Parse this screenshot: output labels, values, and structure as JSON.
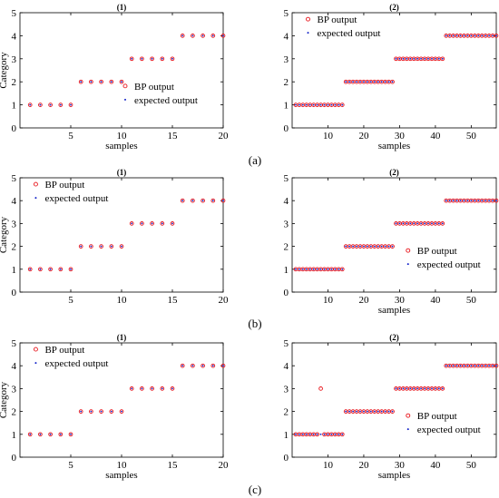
{
  "figure": {
    "rows": [
      {
        "label": "(a)"
      },
      {
        "label": "(b)"
      },
      {
        "label": "(c)"
      }
    ]
  },
  "colors": {
    "bp_output": "#e8141b",
    "expected_output": "#1020c8",
    "axis": "#000000"
  },
  "chart_data": [
    {
      "type": "scatter",
      "title": "(1)",
      "xlabel": "samples",
      "ylabel": "Category",
      "xlim": [
        0,
        20
      ],
      "ylim": [
        0,
        5
      ],
      "xticks": [
        5,
        10,
        15,
        20
      ],
      "yticks": [
        0,
        1,
        2,
        3,
        4,
        5
      ],
      "legend_position": "center-right",
      "series": [
        {
          "name": "BP output",
          "marker": "circle-open",
          "x": [
            1,
            2,
            3,
            4,
            5,
            6,
            7,
            8,
            9,
            10,
            11,
            12,
            13,
            14,
            15,
            16,
            17,
            18,
            19,
            20
          ],
          "y": [
            1,
            1,
            1,
            1,
            1,
            2,
            2,
            2,
            2,
            2,
            3,
            3,
            3,
            3,
            3,
            4,
            4,
            4,
            4,
            4
          ]
        },
        {
          "name": "expected output",
          "marker": "dot",
          "x": [
            1,
            2,
            3,
            4,
            5,
            6,
            7,
            8,
            9,
            10,
            11,
            12,
            13,
            14,
            15,
            16,
            17,
            18,
            19,
            20
          ],
          "y": [
            1,
            1,
            1,
            1,
            1,
            2,
            2,
            2,
            2,
            2,
            3,
            3,
            3,
            3,
            3,
            4,
            4,
            4,
            4,
            4
          ]
        }
      ]
    },
    {
      "type": "scatter",
      "title": "(2)",
      "xlabel": "samples",
      "ylabel": "",
      "xlim": [
        0,
        57
      ],
      "ylim": [
        0,
        5
      ],
      "xticks": [
        10,
        20,
        30,
        40,
        50
      ],
      "yticks": [
        0,
        1,
        2,
        3,
        4,
        5
      ],
      "legend_position": "top-left",
      "series": [
        {
          "name": "BP output",
          "marker": "circle-open",
          "x": [
            1,
            2,
            3,
            4,
            5,
            6,
            7,
            8,
            9,
            10,
            11,
            12,
            13,
            14,
            15,
            16,
            17,
            18,
            19,
            20,
            21,
            22,
            23,
            24,
            25,
            26,
            27,
            28,
            29,
            30,
            31,
            32,
            33,
            34,
            35,
            36,
            37,
            38,
            39,
            40,
            41,
            42,
            43,
            44,
            45,
            46,
            47,
            48,
            49,
            50,
            51,
            52,
            53,
            54,
            55,
            56,
            57
          ],
          "y": [
            1,
            1,
            1,
            1,
            1,
            1,
            1,
            1,
            1,
            1,
            1,
            1,
            1,
            1,
            2,
            2,
            2,
            2,
            2,
            2,
            2,
            2,
            2,
            2,
            2,
            2,
            2,
            2,
            3,
            3,
            3,
            3,
            3,
            3,
            3,
            3,
            3,
            3,
            3,
            3,
            3,
            3,
            4,
            4,
            4,
            4,
            4,
            4,
            4,
            4,
            4,
            4,
            4,
            4,
            4,
            4,
            4
          ]
        },
        {
          "name": "expected output",
          "marker": "dot",
          "x": [
            1,
            2,
            3,
            4,
            5,
            6,
            7,
            8,
            9,
            10,
            11,
            12,
            13,
            14,
            15,
            16,
            17,
            18,
            19,
            20,
            21,
            22,
            23,
            24,
            25,
            26,
            27,
            28,
            29,
            30,
            31,
            32,
            33,
            34,
            35,
            36,
            37,
            38,
            39,
            40,
            41,
            42,
            43,
            44,
            45,
            46,
            47,
            48,
            49,
            50,
            51,
            52,
            53,
            54,
            55,
            56,
            57
          ],
          "y": [
            1,
            1,
            1,
            1,
            1,
            1,
            1,
            1,
            1,
            1,
            1,
            1,
            1,
            1,
            2,
            2,
            2,
            2,
            2,
            2,
            2,
            2,
            2,
            2,
            2,
            2,
            2,
            2,
            3,
            3,
            3,
            3,
            3,
            3,
            3,
            3,
            3,
            3,
            3,
            3,
            3,
            3,
            4,
            4,
            4,
            4,
            4,
            4,
            4,
            4,
            4,
            4,
            4,
            4,
            4,
            4,
            4
          ]
        }
      ]
    },
    {
      "type": "scatter",
      "title": "(1)",
      "xlabel": "",
      "ylabel": "Category",
      "xlim": [
        0,
        20
      ],
      "ylim": [
        0,
        5
      ],
      "xticks": [
        5,
        10,
        15,
        20
      ],
      "yticks": [
        0,
        1,
        2,
        3,
        4,
        5
      ],
      "legend_position": "top-left",
      "series": [
        {
          "name": "BP output",
          "marker": "circle-open",
          "x": [
            1,
            2,
            3,
            4,
            5,
            6,
            7,
            8,
            9,
            10,
            11,
            12,
            13,
            14,
            15,
            16,
            17,
            18,
            19,
            20
          ],
          "y": [
            1,
            1,
            1,
            1,
            1,
            2,
            2,
            2,
            2,
            2,
            3,
            3,
            3,
            3,
            3,
            4,
            4,
            4,
            4,
            4
          ]
        },
        {
          "name": "expected output",
          "marker": "dot",
          "x": [
            1,
            2,
            3,
            4,
            5,
            6,
            7,
            8,
            9,
            10,
            11,
            12,
            13,
            14,
            15,
            16,
            17,
            18,
            19,
            20
          ],
          "y": [
            1,
            1,
            1,
            1,
            1,
            2,
            2,
            2,
            2,
            2,
            3,
            3,
            3,
            3,
            3,
            4,
            4,
            4,
            4,
            4
          ]
        }
      ]
    },
    {
      "type": "scatter",
      "title": "(2)",
      "xlabel": "samples",
      "ylabel": "",
      "xlim": [
        0,
        57
      ],
      "ylim": [
        0,
        5
      ],
      "xticks": [
        10,
        20,
        30,
        40,
        50
      ],
      "yticks": [
        0,
        1,
        2,
        3,
        4,
        5
      ],
      "legend_position": "bottom-right",
      "series": [
        {
          "name": "BP output",
          "marker": "circle-open",
          "x": [
            1,
            2,
            3,
            4,
            5,
            6,
            7,
            8,
            9,
            10,
            11,
            12,
            13,
            14,
            15,
            16,
            17,
            18,
            19,
            20,
            21,
            22,
            23,
            24,
            25,
            26,
            27,
            28,
            29,
            30,
            31,
            32,
            33,
            34,
            35,
            36,
            37,
            38,
            39,
            40,
            41,
            42,
            43,
            44,
            45,
            46,
            47,
            48,
            49,
            50,
            51,
            52,
            53,
            54,
            55,
            56,
            57
          ],
          "y": [
            1,
            1,
            1,
            1,
            1,
            1,
            1,
            1,
            1,
            1,
            1,
            1,
            1,
            1,
            2,
            2,
            2,
            2,
            2,
            2,
            2,
            2,
            2,
            2,
            2,
            2,
            2,
            2,
            3,
            3,
            3,
            3,
            3,
            3,
            3,
            3,
            3,
            3,
            3,
            3,
            3,
            3,
            4,
            4,
            4,
            4,
            4,
            4,
            4,
            4,
            4,
            4,
            4,
            4,
            4,
            4,
            4
          ]
        },
        {
          "name": "expected output",
          "marker": "dot",
          "x": [
            1,
            2,
            3,
            4,
            5,
            6,
            7,
            8,
            9,
            10,
            11,
            12,
            13,
            14,
            15,
            16,
            17,
            18,
            19,
            20,
            21,
            22,
            23,
            24,
            25,
            26,
            27,
            28,
            29,
            30,
            31,
            32,
            33,
            34,
            35,
            36,
            37,
            38,
            39,
            40,
            41,
            42,
            43,
            44,
            45,
            46,
            47,
            48,
            49,
            50,
            51,
            52,
            53,
            54,
            55,
            56,
            57
          ],
          "y": [
            1,
            1,
            1,
            1,
            1,
            1,
            1,
            1,
            1,
            1,
            1,
            1,
            1,
            1,
            2,
            2,
            2,
            2,
            2,
            2,
            2,
            2,
            2,
            2,
            2,
            2,
            2,
            2,
            3,
            3,
            3,
            3,
            3,
            3,
            3,
            3,
            3,
            3,
            3,
            3,
            3,
            3,
            4,
            4,
            4,
            4,
            4,
            4,
            4,
            4,
            4,
            4,
            4,
            4,
            4,
            4,
            4
          ]
        }
      ]
    },
    {
      "type": "scatter",
      "title": "(1)",
      "xlabel": "samples",
      "ylabel": "Category",
      "xlim": [
        0,
        20
      ],
      "ylim": [
        0,
        5
      ],
      "xticks": [
        5,
        10,
        15,
        20
      ],
      "yticks": [
        0,
        1,
        2,
        3,
        4,
        5
      ],
      "legend_position": "top-left",
      "series": [
        {
          "name": "BP output",
          "marker": "circle-open",
          "x": [
            1,
            2,
            3,
            4,
            5,
            6,
            7,
            8,
            9,
            10,
            11,
            12,
            13,
            14,
            15,
            16,
            17,
            18,
            19,
            20
          ],
          "y": [
            1,
            1,
            1,
            1,
            1,
            2,
            2,
            2,
            2,
            2,
            3,
            3,
            3,
            3,
            3,
            4,
            4,
            4,
            4,
            4
          ]
        },
        {
          "name": "expected output",
          "marker": "dot",
          "x": [
            1,
            2,
            3,
            4,
            5,
            6,
            7,
            8,
            9,
            10,
            11,
            12,
            13,
            14,
            15,
            16,
            17,
            18,
            19,
            20
          ],
          "y": [
            1,
            1,
            1,
            1,
            1,
            2,
            2,
            2,
            2,
            2,
            3,
            3,
            3,
            3,
            3,
            4,
            4,
            4,
            4,
            4
          ]
        }
      ]
    },
    {
      "type": "scatter",
      "title": "(2)",
      "xlabel": "samples",
      "ylabel": "",
      "xlim": [
        0,
        57
      ],
      "ylim": [
        0,
        5
      ],
      "xticks": [
        10,
        20,
        30,
        40,
        50
      ],
      "yticks": [
        0,
        1,
        2,
        3,
        4,
        5
      ],
      "legend_position": "bottom-right",
      "series": [
        {
          "name": "BP output",
          "marker": "circle-open",
          "x": [
            1,
            2,
            3,
            4,
            5,
            6,
            7,
            8,
            9,
            10,
            11,
            12,
            13,
            14,
            15,
            16,
            17,
            18,
            19,
            20,
            21,
            22,
            23,
            24,
            25,
            26,
            27,
            28,
            29,
            30,
            31,
            32,
            33,
            34,
            35,
            36,
            37,
            38,
            39,
            40,
            41,
            42,
            43,
            44,
            45,
            46,
            47,
            48,
            49,
            50,
            51,
            52,
            53,
            54,
            55,
            56,
            57
          ],
          "y": [
            1,
            1,
            1,
            1,
            1,
            1,
            1,
            3,
            1,
            1,
            1,
            1,
            1,
            1,
            2,
            2,
            2,
            2,
            2,
            2,
            2,
            2,
            2,
            2,
            2,
            2,
            2,
            2,
            3,
            3,
            3,
            3,
            3,
            3,
            3,
            3,
            3,
            3,
            3,
            3,
            3,
            3,
            4,
            4,
            4,
            4,
            4,
            4,
            4,
            4,
            4,
            4,
            4,
            4,
            4,
            4,
            4
          ]
        },
        {
          "name": "expected output",
          "marker": "dot",
          "x": [
            1,
            2,
            3,
            4,
            5,
            6,
            7,
            8,
            9,
            10,
            11,
            12,
            13,
            14,
            15,
            16,
            17,
            18,
            19,
            20,
            21,
            22,
            23,
            24,
            25,
            26,
            27,
            28,
            29,
            30,
            31,
            32,
            33,
            34,
            35,
            36,
            37,
            38,
            39,
            40,
            41,
            42,
            43,
            44,
            45,
            46,
            47,
            48,
            49,
            50,
            51,
            52,
            53,
            54,
            55,
            56,
            57
          ],
          "y": [
            1,
            1,
            1,
            1,
            1,
            1,
            1,
            1,
            1,
            1,
            1,
            1,
            1,
            1,
            2,
            2,
            2,
            2,
            2,
            2,
            2,
            2,
            2,
            2,
            2,
            2,
            2,
            2,
            3,
            3,
            3,
            3,
            3,
            3,
            3,
            3,
            3,
            3,
            3,
            3,
            3,
            3,
            4,
            4,
            4,
            4,
            4,
            4,
            4,
            4,
            4,
            4,
            4,
            4,
            4,
            4,
            4
          ]
        }
      ]
    }
  ]
}
